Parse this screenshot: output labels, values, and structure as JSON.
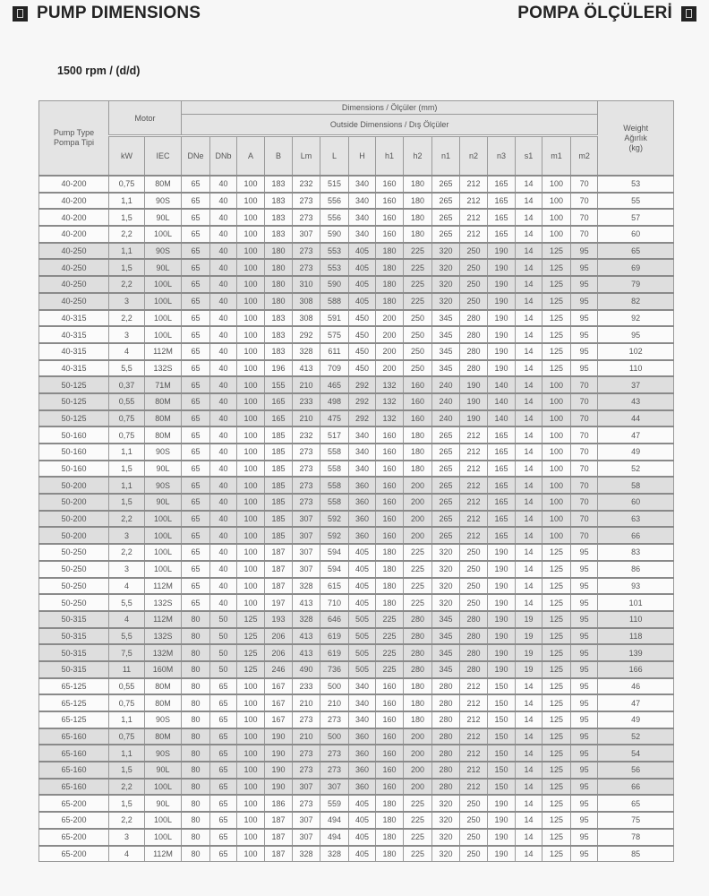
{
  "header": {
    "title_en": "PUMP DIMENSIONS",
    "title_tr": "POMPA ÖLÇÜLERİ",
    "icon": "book-icon",
    "rpm": "1500 rpm / (d/d)"
  },
  "table": {
    "pump_type": "Pump Type",
    "pump_type_tr": "Pompa Tipi",
    "motor": "Motor",
    "dimensions": "Dimensions / Ölçüler (mm)",
    "outside": "Outside Dimensions / Dış Ölçüler",
    "weight": "Weight",
    "weight_tr": "Ağırlık",
    "weight_unit": "(kg)",
    "columns": [
      "kW",
      "IEC",
      "DNe",
      "DNb",
      "A",
      "B",
      "Lm",
      "L",
      "H",
      "h1",
      "h2",
      "n1",
      "n2",
      "n3",
      "s1",
      "m1",
      "m2"
    ],
    "rows": [
      [
        "40-200",
        "0,75",
        "80M",
        "65",
        "40",
        "100",
        "183",
        "232",
        "515",
        "340",
        "160",
        "180",
        "265",
        "212",
        "165",
        "14",
        "100",
        "70",
        "53"
      ],
      [
        "40-200",
        "1,1",
        "90S",
        "65",
        "40",
        "100",
        "183",
        "273",
        "556",
        "340",
        "160",
        "180",
        "265",
        "212",
        "165",
        "14",
        "100",
        "70",
        "55"
      ],
      [
        "40-200",
        "1,5",
        "90L",
        "65",
        "40",
        "100",
        "183",
        "273",
        "556",
        "340",
        "160",
        "180",
        "265",
        "212",
        "165",
        "14",
        "100",
        "70",
        "57"
      ],
      [
        "40-200",
        "2,2",
        "100L",
        "65",
        "40",
        "100",
        "183",
        "307",
        "590",
        "340",
        "160",
        "180",
        "265",
        "212",
        "165",
        "14",
        "100",
        "70",
        "60"
      ],
      [
        "40-250",
        "1,1",
        "90S",
        "65",
        "40",
        "100",
        "180",
        "273",
        "553",
        "405",
        "180",
        "225",
        "320",
        "250",
        "190",
        "14",
        "125",
        "95",
        "65"
      ],
      [
        "40-250",
        "1,5",
        "90L",
        "65",
        "40",
        "100",
        "180",
        "273",
        "553",
        "405",
        "180",
        "225",
        "320",
        "250",
        "190",
        "14",
        "125",
        "95",
        "69"
      ],
      [
        "40-250",
        "2,2",
        "100L",
        "65",
        "40",
        "100",
        "180",
        "310",
        "590",
        "405",
        "180",
        "225",
        "320",
        "250",
        "190",
        "14",
        "125",
        "95",
        "79"
      ],
      [
        "40-250",
        "3",
        "100L",
        "65",
        "40",
        "100",
        "180",
        "308",
        "588",
        "405",
        "180",
        "225",
        "320",
        "250",
        "190",
        "14",
        "125",
        "95",
        "82"
      ],
      [
        "40-315",
        "2,2",
        "100L",
        "65",
        "40",
        "100",
        "183",
        "308",
        "591",
        "450",
        "200",
        "250",
        "345",
        "280",
        "190",
        "14",
        "125",
        "95",
        "92"
      ],
      [
        "40-315",
        "3",
        "100L",
        "65",
        "40",
        "100",
        "183",
        "292",
        "575",
        "450",
        "200",
        "250",
        "345",
        "280",
        "190",
        "14",
        "125",
        "95",
        "95"
      ],
      [
        "40-315",
        "4",
        "112M",
        "65",
        "40",
        "100",
        "183",
        "328",
        "611",
        "450",
        "200",
        "250",
        "345",
        "280",
        "190",
        "14",
        "125",
        "95",
        "102"
      ],
      [
        "40-315",
        "5,5",
        "132S",
        "65",
        "40",
        "100",
        "196",
        "413",
        "709",
        "450",
        "200",
        "250",
        "345",
        "280",
        "190",
        "14",
        "125",
        "95",
        "110"
      ],
      [
        "50-125",
        "0,37",
        "71M",
        "65",
        "40",
        "100",
        "155",
        "210",
        "465",
        "292",
        "132",
        "160",
        "240",
        "190",
        "140",
        "14",
        "100",
        "70",
        "37"
      ],
      [
        "50-125",
        "0,55",
        "80M",
        "65",
        "40",
        "100",
        "165",
        "233",
        "498",
        "292",
        "132",
        "160",
        "240",
        "190",
        "140",
        "14",
        "100",
        "70",
        "43"
      ],
      [
        "50-125",
        "0,75",
        "80M",
        "65",
        "40",
        "100",
        "165",
        "210",
        "475",
        "292",
        "132",
        "160",
        "240",
        "190",
        "140",
        "14",
        "100",
        "70",
        "44"
      ],
      [
        "50-160",
        "0,75",
        "80M",
        "65",
        "40",
        "100",
        "185",
        "232",
        "517",
        "340",
        "160",
        "180",
        "265",
        "212",
        "165",
        "14",
        "100",
        "70",
        "47"
      ],
      [
        "50-160",
        "1,1",
        "90S",
        "65",
        "40",
        "100",
        "185",
        "273",
        "558",
        "340",
        "160",
        "180",
        "265",
        "212",
        "165",
        "14",
        "100",
        "70",
        "49"
      ],
      [
        "50-160",
        "1,5",
        "90L",
        "65",
        "40",
        "100",
        "185",
        "273",
        "558",
        "340",
        "160",
        "180",
        "265",
        "212",
        "165",
        "14",
        "100",
        "70",
        "52"
      ],
      [
        "50-200",
        "1,1",
        "90S",
        "65",
        "40",
        "100",
        "185",
        "273",
        "558",
        "360",
        "160",
        "200",
        "265",
        "212",
        "165",
        "14",
        "100",
        "70",
        "58"
      ],
      [
        "50-200",
        "1,5",
        "90L",
        "65",
        "40",
        "100",
        "185",
        "273",
        "558",
        "360",
        "160",
        "200",
        "265",
        "212",
        "165",
        "14",
        "100",
        "70",
        "60"
      ],
      [
        "50-200",
        "2,2",
        "100L",
        "65",
        "40",
        "100",
        "185",
        "307",
        "592",
        "360",
        "160",
        "200",
        "265",
        "212",
        "165",
        "14",
        "100",
        "70",
        "63"
      ],
      [
        "50-200",
        "3",
        "100L",
        "65",
        "40",
        "100",
        "185",
        "307",
        "592",
        "360",
        "160",
        "200",
        "265",
        "212",
        "165",
        "14",
        "100",
        "70",
        "66"
      ],
      [
        "50-250",
        "2,2",
        "100L",
        "65",
        "40",
        "100",
        "187",
        "307",
        "594",
        "405",
        "180",
        "225",
        "320",
        "250",
        "190",
        "14",
        "125",
        "95",
        "83"
      ],
      [
        "50-250",
        "3",
        "100L",
        "65",
        "40",
        "100",
        "187",
        "307",
        "594",
        "405",
        "180",
        "225",
        "320",
        "250",
        "190",
        "14",
        "125",
        "95",
        "86"
      ],
      [
        "50-250",
        "4",
        "112M",
        "65",
        "40",
        "100",
        "187",
        "328",
        "615",
        "405",
        "180",
        "225",
        "320",
        "250",
        "190",
        "14",
        "125",
        "95",
        "93"
      ],
      [
        "50-250",
        "5,5",
        "132S",
        "65",
        "40",
        "100",
        "197",
        "413",
        "710",
        "405",
        "180",
        "225",
        "320",
        "250",
        "190",
        "14",
        "125",
        "95",
        "101"
      ],
      [
        "50-315",
        "4",
        "112M",
        "80",
        "50",
        "125",
        "193",
        "328",
        "646",
        "505",
        "225",
        "280",
        "345",
        "280",
        "190",
        "19",
        "125",
        "95",
        "110"
      ],
      [
        "50-315",
        "5,5",
        "132S",
        "80",
        "50",
        "125",
        "206",
        "413",
        "619",
        "505",
        "225",
        "280",
        "345",
        "280",
        "190",
        "19",
        "125",
        "95",
        "118"
      ],
      [
        "50-315",
        "7,5",
        "132M",
        "80",
        "50",
        "125",
        "206",
        "413",
        "619",
        "505",
        "225",
        "280",
        "345",
        "280",
        "190",
        "19",
        "125",
        "95",
        "139"
      ],
      [
        "50-315",
        "11",
        "160M",
        "80",
        "50",
        "125",
        "246",
        "490",
        "736",
        "505",
        "225",
        "280",
        "345",
        "280",
        "190",
        "19",
        "125",
        "95",
        "166"
      ],
      [
        "65-125",
        "0,55",
        "80M",
        "80",
        "65",
        "100",
        "167",
        "233",
        "500",
        "340",
        "160",
        "180",
        "280",
        "212",
        "150",
        "14",
        "125",
        "95",
        "46"
      ],
      [
        "65-125",
        "0,75",
        "80M",
        "80",
        "65",
        "100",
        "167",
        "210",
        "210",
        "340",
        "160",
        "180",
        "280",
        "212",
        "150",
        "14",
        "125",
        "95",
        "47"
      ],
      [
        "65-125",
        "1,1",
        "90S",
        "80",
        "65",
        "100",
        "167",
        "273",
        "273",
        "340",
        "160",
        "180",
        "280",
        "212",
        "150",
        "14",
        "125",
        "95",
        "49"
      ],
      [
        "65-160",
        "0,75",
        "80M",
        "80",
        "65",
        "100",
        "190",
        "210",
        "500",
        "360",
        "160",
        "200",
        "280",
        "212",
        "150",
        "14",
        "125",
        "95",
        "52"
      ],
      [
        "65-160",
        "1,1",
        "90S",
        "80",
        "65",
        "100",
        "190",
        "273",
        "273",
        "360",
        "160",
        "200",
        "280",
        "212",
        "150",
        "14",
        "125",
        "95",
        "54"
      ],
      [
        "65-160",
        "1,5",
        "90L",
        "80",
        "65",
        "100",
        "190",
        "273",
        "273",
        "360",
        "160",
        "200",
        "280",
        "212",
        "150",
        "14",
        "125",
        "95",
        "56"
      ],
      [
        "65-160",
        "2,2",
        "100L",
        "80",
        "65",
        "100",
        "190",
        "307",
        "307",
        "360",
        "160",
        "200",
        "280",
        "212",
        "150",
        "14",
        "125",
        "95",
        "66"
      ],
      [
        "65-200",
        "1,5",
        "90L",
        "80",
        "65",
        "100",
        "186",
        "273",
        "559",
        "405",
        "180",
        "225",
        "320",
        "250",
        "190",
        "14",
        "125",
        "95",
        "65"
      ],
      [
        "65-200",
        "2,2",
        "100L",
        "80",
        "65",
        "100",
        "187",
        "307",
        "494",
        "405",
        "180",
        "225",
        "320",
        "250",
        "190",
        "14",
        "125",
        "95",
        "75"
      ],
      [
        "65-200",
        "3",
        "100L",
        "80",
        "65",
        "100",
        "187",
        "307",
        "494",
        "405",
        "180",
        "225",
        "320",
        "250",
        "190",
        "14",
        "125",
        "95",
        "78"
      ],
      [
        "65-200",
        "4",
        "112M",
        "80",
        "65",
        "100",
        "187",
        "328",
        "328",
        "405",
        "180",
        "225",
        "320",
        "250",
        "190",
        "14",
        "125",
        "95",
        "85"
      ]
    ]
  }
}
